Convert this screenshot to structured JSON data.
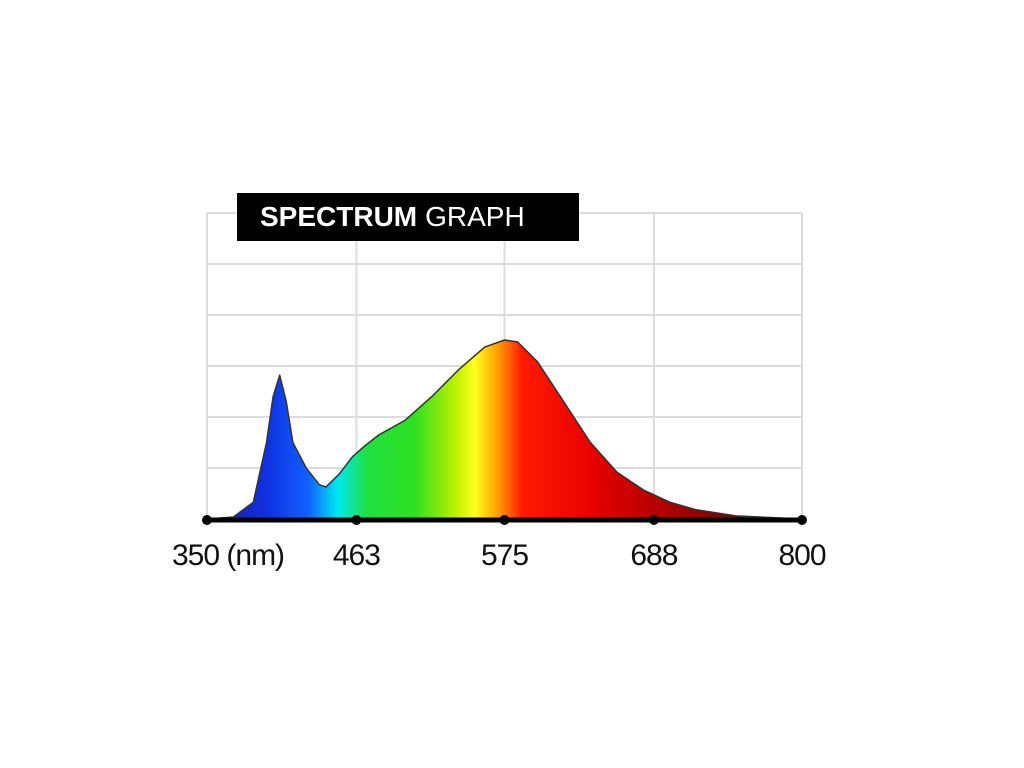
{
  "chart_data": {
    "type": "area",
    "title": [
      "SPECTRUM",
      "GRAPH"
    ],
    "x": [
      350,
      370,
      385,
      395,
      400,
      405,
      410,
      415,
      425,
      435,
      440,
      450,
      460,
      470,
      480,
      500,
      520,
      540,
      560,
      575,
      585,
      600,
      620,
      640,
      660,
      680,
      700,
      720,
      750,
      800
    ],
    "values": [
      0,
      0.04,
      0.33,
      1.5,
      2.4,
      2.82,
      2.3,
      1.5,
      1.0,
      0.67,
      0.63,
      0.88,
      1.22,
      1.45,
      1.65,
      1.94,
      2.4,
      2.92,
      3.37,
      3.51,
      3.47,
      3.08,
      2.29,
      1.5,
      0.92,
      0.57,
      0.33,
      0.18,
      0.06,
      0
    ],
    "xlim": [
      350,
      800
    ],
    "xticks": [
      {
        "value": 350,
        "label": "350 (nm)"
      },
      463,
      575,
      688,
      800
    ],
    "ylim": [
      0,
      6
    ],
    "ygrid": [
      1,
      2,
      3,
      4,
      5,
      6
    ],
    "grid": true,
    "line_color": "#333333"
  }
}
